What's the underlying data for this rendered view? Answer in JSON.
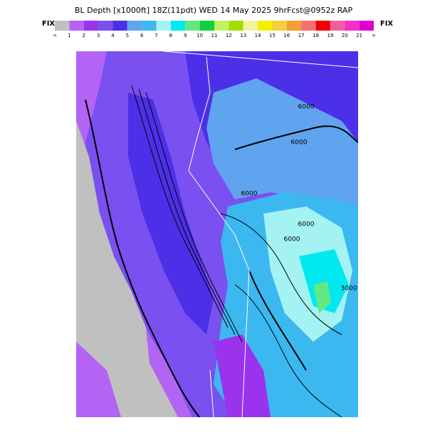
{
  "header": {
    "title": "BL Depth [x1000ft] 18Z(11pdt) WED 14 May 2025 9hrFcst@0952z RAP",
    "fix_left": "FIX",
    "fix_right": "FIX"
  },
  "colorbar": {
    "labels": [
      "<",
      "1",
      "2",
      "3",
      "4",
      "5",
      "6",
      "7",
      "8",
      "9",
      "10",
      "11",
      "12",
      "13",
      "14",
      "15",
      "16",
      "17",
      "18",
      "19",
      "20",
      "21",
      ">"
    ],
    "colors": [
      "#c0c0c0",
      "#b464f4",
      "#9a32ee",
      "#7a50f0",
      "#4c30e8",
      "#60a4f0",
      "#3cb8f0",
      "#a4f2f2",
      "#00e8f0",
      "#64e884",
      "#10d040",
      "#c4f064",
      "#a0e000",
      "#f2f2a0",
      "#f0f000",
      "#f2d040",
      "#f2a030",
      "#f27070",
      "#f00000",
      "#f060a0",
      "#f030c8",
      "#e000d0"
    ]
  },
  "map": {
    "contour_labels": [
      "6000",
      "6000",
      "6000",
      "6000",
      "6000",
      "3000"
    ]
  }
}
